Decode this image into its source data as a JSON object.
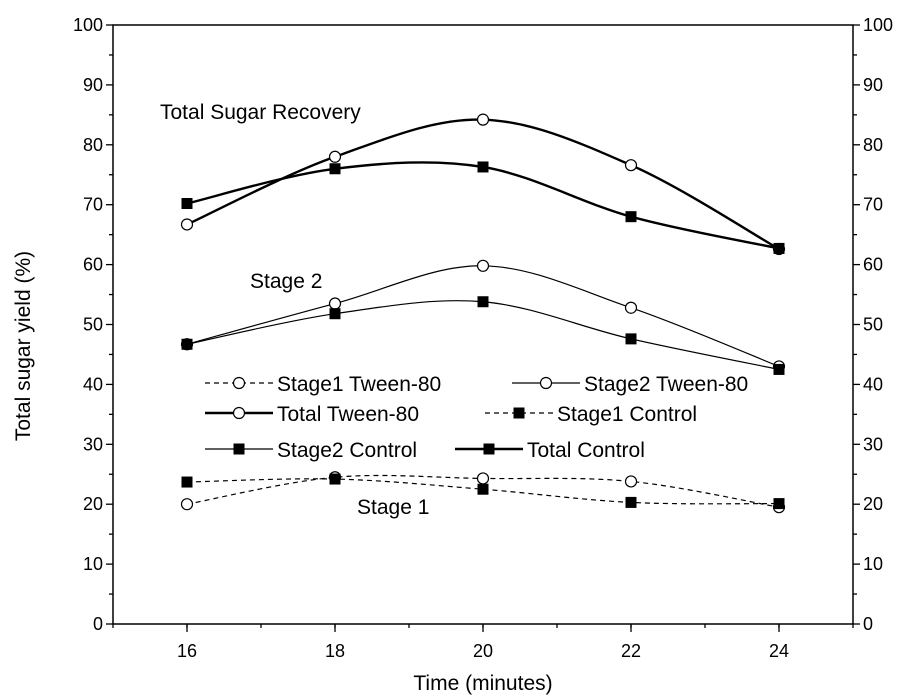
{
  "chart_data": {
    "type": "line",
    "xlabel": "Time (minutes)",
    "ylabel": "Total sugar yield (%)",
    "xlim": [
      15,
      25
    ],
    "ylim": [
      0,
      100
    ],
    "ylim_right": [
      0,
      100
    ],
    "x_ticks": [
      16,
      18,
      20,
      22,
      24
    ],
    "y_ticks": [
      0,
      10,
      20,
      30,
      40,
      50,
      60,
      70,
      80,
      90,
      100
    ],
    "grid": false,
    "legend_position": "center",
    "x": [
      16,
      18,
      20,
      22,
      24
    ],
    "series": [
      {
        "name": "Stage1 Tween-80",
        "values": [
          20.0,
          24.5,
          24.3,
          23.8,
          19.5
        ],
        "marker": "open-circle",
        "line": "dashed",
        "weight": "thin"
      },
      {
        "name": "Stage2 Tween-80",
        "values": [
          46.7,
          53.5,
          59.8,
          52.8,
          43.0
        ],
        "marker": "open-circle",
        "line": "solid",
        "weight": "thin"
      },
      {
        "name": "Total Tween-80",
        "values": [
          66.7,
          78.0,
          84.2,
          76.6,
          62.6
        ],
        "marker": "open-circle",
        "line": "solid",
        "weight": "thick"
      },
      {
        "name": "Stage1 Control",
        "values": [
          23.7,
          24.2,
          22.5,
          20.3,
          20.1
        ],
        "marker": "filled-square",
        "line": "dashed",
        "weight": "thin"
      },
      {
        "name": "Stage2 Control",
        "values": [
          46.7,
          51.8,
          53.8,
          47.6,
          42.5
        ],
        "marker": "filled-square",
        "line": "solid",
        "weight": "thin"
      },
      {
        "name": "Total Control",
        "values": [
          70.2,
          76.0,
          76.3,
          68.0,
          62.7
        ],
        "marker": "filled-square",
        "line": "solid",
        "weight": "thick"
      }
    ],
    "annotations": [
      "Total Sugar Recovery",
      "Stage 2",
      "Stage 1"
    ]
  }
}
